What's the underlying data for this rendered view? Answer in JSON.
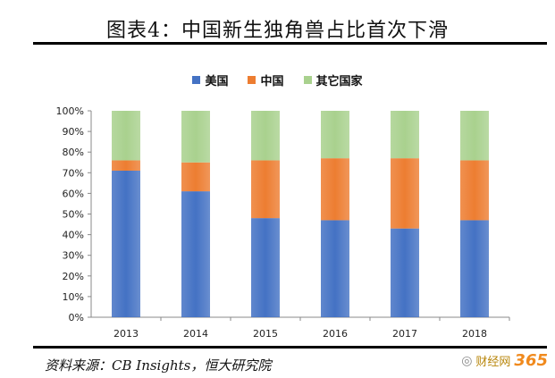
{
  "title": "图表4：中国新生独角兽占比首次下滑",
  "source": "资料来源：CB Insights，恒大研究院",
  "watermark": {
    "wechat_mark": "◎",
    "brand_text": "财经网",
    "brand_number": "365"
  },
  "colors": {
    "us": "#4472c4",
    "china": "#ed7d31",
    "other": "#a9d18e"
  },
  "chart_data": {
    "type": "bar",
    "stacked": true,
    "categories": [
      "2013",
      "2014",
      "2015",
      "2016",
      "2017",
      "2018"
    ],
    "series": [
      {
        "name": "美国",
        "values": [
          71,
          61,
          48,
          47,
          43,
          47
        ]
      },
      {
        "name": "中国",
        "values": [
          5,
          14,
          28,
          30,
          34,
          29
        ]
      },
      {
        "name": "其它国家",
        "values": [
          24,
          25,
          24,
          23,
          23,
          24
        ]
      }
    ],
    "ylim": [
      0,
      100
    ],
    "yticks": [
      "0%",
      "10%",
      "20%",
      "30%",
      "40%",
      "50%",
      "60%",
      "70%",
      "80%",
      "90%",
      "100%"
    ],
    "legend_position": "top",
    "grid": false
  }
}
